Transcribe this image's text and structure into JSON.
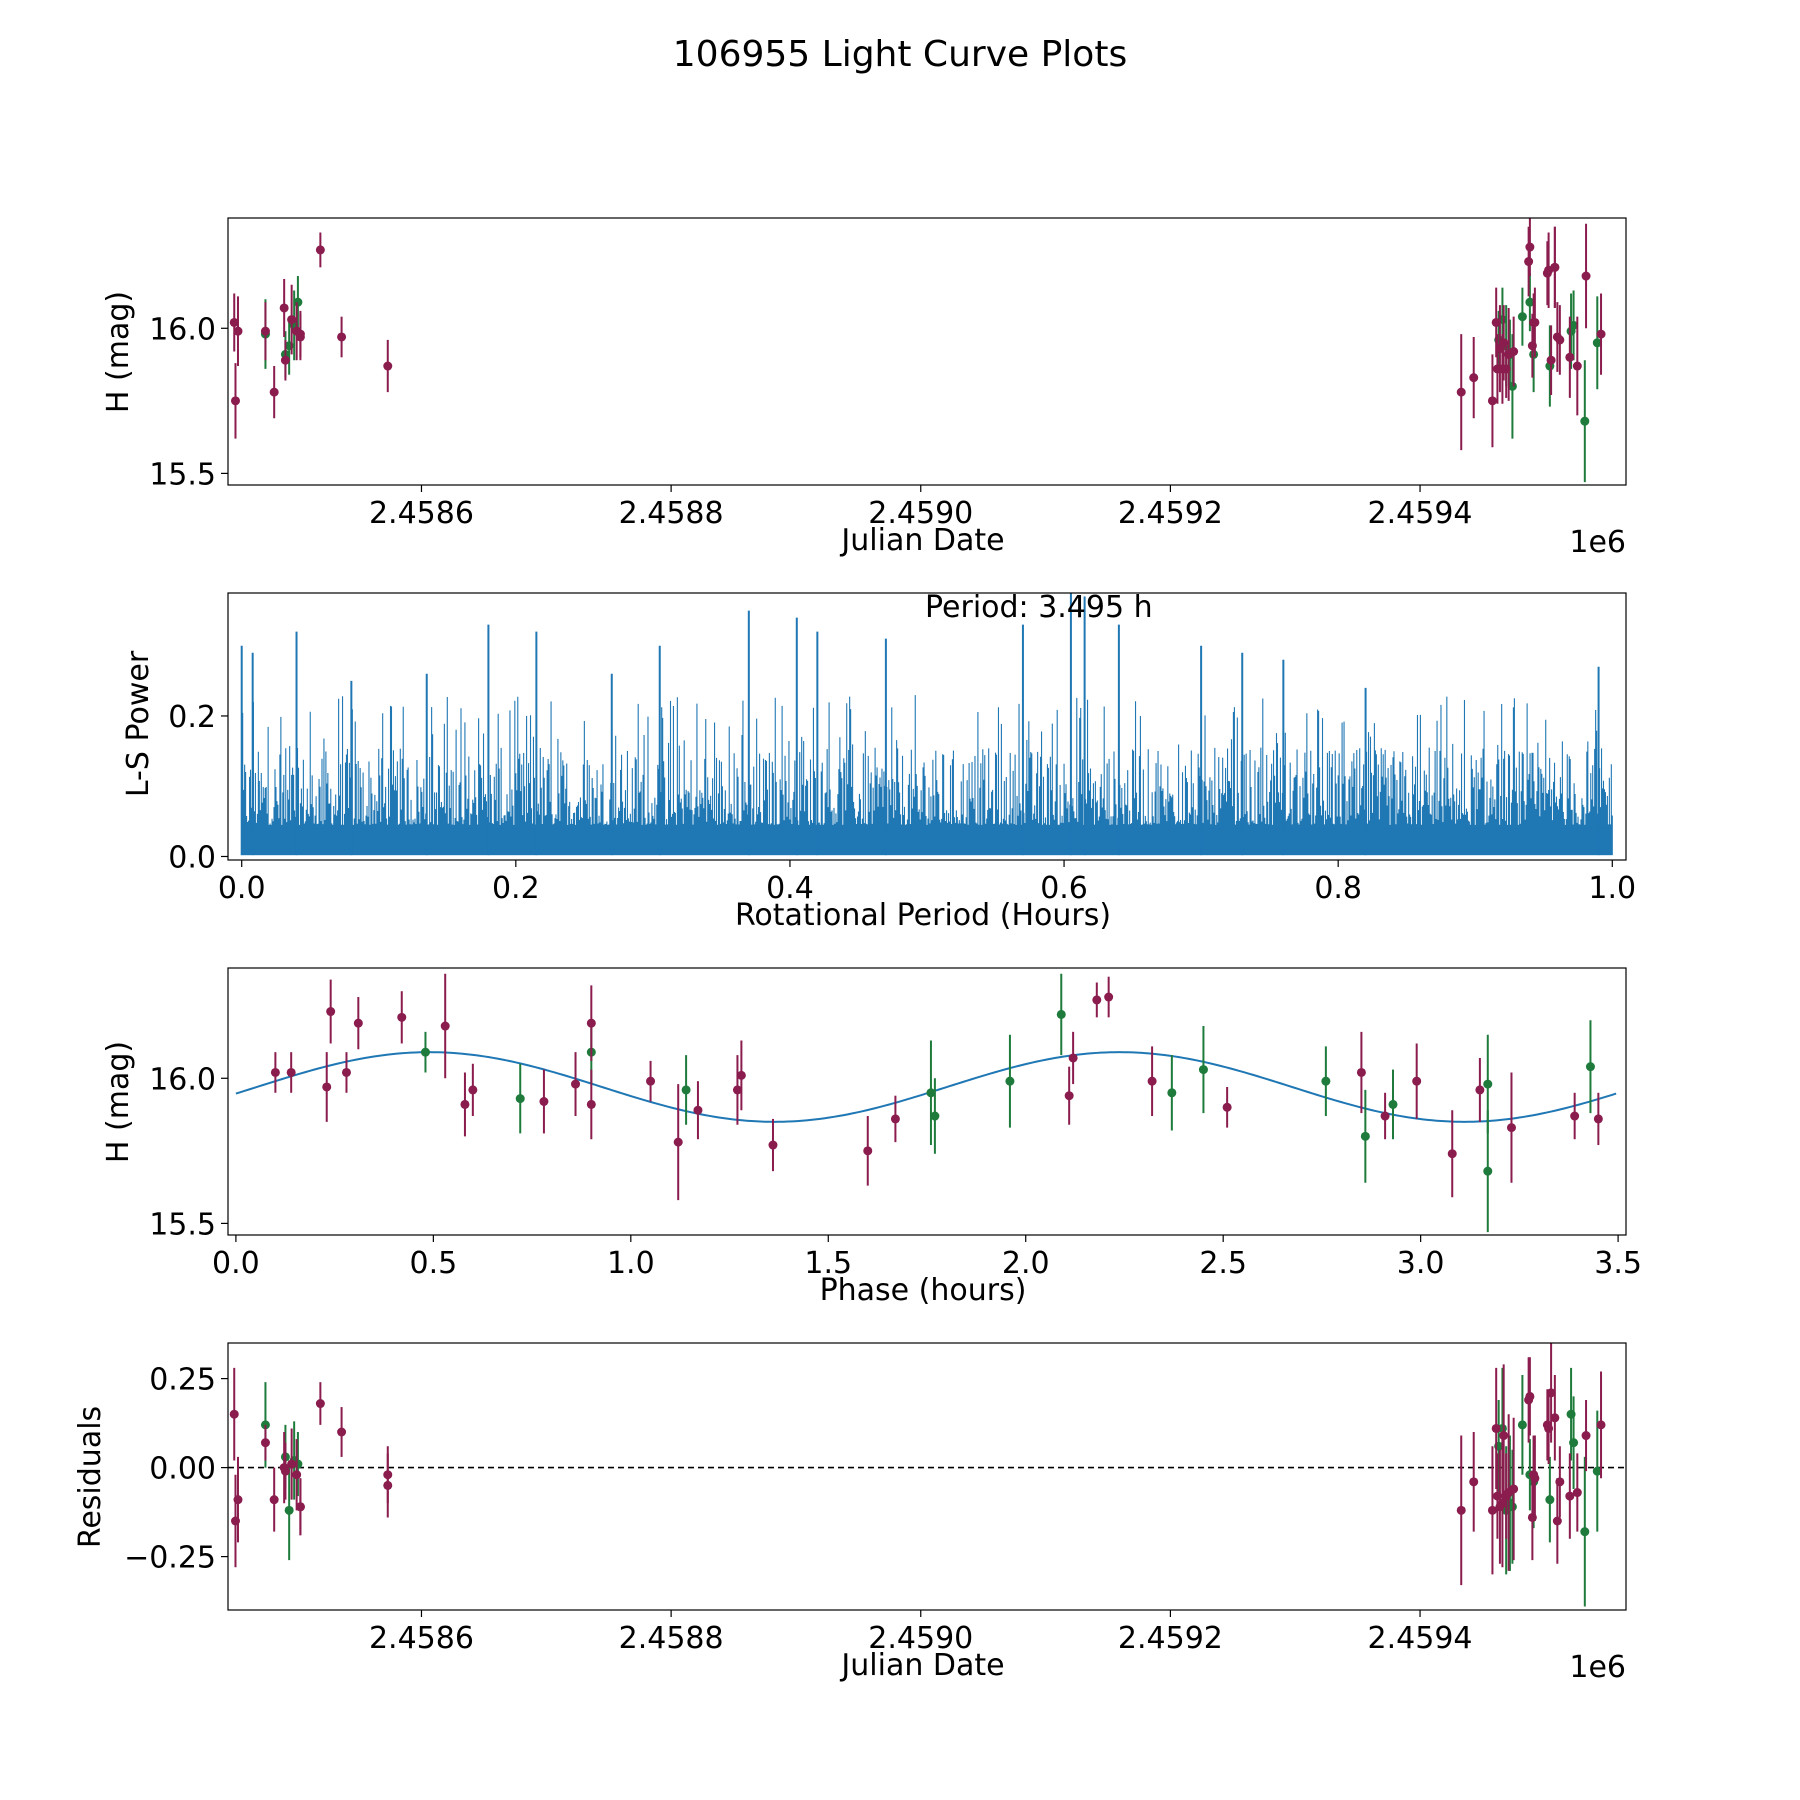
{
  "figure_title": "106955 Light Curve Plots",
  "colors": {
    "ztf_g": "#1e7b3b",
    "ztf_r": "#8a1c4e",
    "model": "#1f77b4",
    "frame": "#000000",
    "background": "#ffffff"
  },
  "chart_data": [
    {
      "id": "light_curve",
      "type": "scatter",
      "title": "",
      "xlabel": "Julian Date",
      "ylabel": "H (mag)",
      "x_offset_label": "1e6",
      "xlim": [
        2458445,
        2459565
      ],
      "ylim": [
        15.46,
        16.38
      ],
      "xticks": [
        2458600,
        2458800,
        2459000,
        2459200,
        2459400
      ],
      "xtick_labels": [
        "2.4586",
        "2.4588",
        "2.4590",
        "2.4592",
        "2.4594"
      ],
      "yticks": [
        15.5,
        16.0
      ],
      "ytick_labels": [
        "15.5",
        "16.0"
      ],
      "series": [
        {
          "name": "green",
          "color": "#1e7b3b",
          "x": [
            2458475,
            2458491,
            2458494,
            2458498,
            2458501,
            2459463,
            2459466,
            2459469,
            2459472,
            2459474,
            2459482,
            2459488,
            2459491,
            2459504,
            2459521,
            2459523,
            2459532,
            2459542
          ],
          "y": [
            15.98,
            15.91,
            15.94,
            16.01,
            16.09,
            15.96,
            16.03,
            15.94,
            15.91,
            15.8,
            16.04,
            16.09,
            15.91,
            15.87,
            15.99,
            16.01,
            15.68,
            15.95
          ],
          "err": [
            0.12,
            0.08,
            0.1,
            0.12,
            0.09,
            0.1,
            0.11,
            0.14,
            0.12,
            0.18,
            0.1,
            0.1,
            0.13,
            0.14,
            0.13,
            0.12,
            0.21,
            0.16
          ]
        },
        {
          "name": "red",
          "color": "#8a1c4e",
          "x": [
            2458450,
            2458451,
            2458453,
            2458475,
            2458482,
            2458490,
            2458491,
            2458496,
            2458500,
            2458503,
            2458503,
            2458519,
            2458536,
            2458573,
            2459433,
            2459443,
            2459458,
            2459461,
            2459462,
            2459464,
            2459466,
            2459467,
            2459469,
            2459471,
            2459475,
            2459487,
            2459488,
            2459490,
            2459491,
            2459492,
            2459502,
            2459503,
            2459505,
            2459508,
            2459508,
            2459510,
            2459512,
            2459520,
            2459526,
            2459533,
            2459545
          ],
          "y": [
            16.02,
            15.75,
            15.99,
            15.99,
            15.78,
            16.07,
            15.89,
            16.03,
            15.99,
            15.97,
            15.98,
            16.27,
            15.97,
            15.87,
            15.78,
            15.83,
            15.75,
            16.02,
            15.86,
            15.93,
            15.86,
            15.95,
            15.86,
            15.91,
            15.92,
            16.23,
            16.28,
            15.94,
            16.02,
            16.02,
            16.19,
            16.2,
            15.89,
            16.21,
            16.21,
            15.97,
            15.96,
            15.9,
            15.87,
            16.18,
            15.98
          ],
          "err": [
            0.1,
            0.13,
            0.12,
            0.1,
            0.09,
            0.1,
            0.07,
            0.12,
            0.1,
            0.08,
            0.08,
            0.06,
            0.07,
            0.09,
            0.2,
            0.14,
            0.16,
            0.12,
            0.12,
            0.15,
            0.12,
            0.13,
            0.1,
            0.16,
            0.12,
            0.12,
            0.1,
            0.11,
            0.1,
            0.12,
            0.11,
            0.13,
            0.12,
            0.14,
            0.14,
            0.12,
            0.12,
            0.14,
            0.17,
            0.18,
            0.14
          ]
        }
      ]
    },
    {
      "id": "periodogram",
      "type": "line",
      "title": "",
      "annotation": "Period: 3.495 h",
      "xlabel": "Rotational Period (Hours)",
      "ylabel": "L-S Power",
      "xlim": [
        -0.01,
        1.01
      ],
      "ylim": [
        -0.005,
        0.375
      ],
      "xticks": [
        0.0,
        0.2,
        0.4,
        0.6,
        0.8,
        1.0
      ],
      "xtick_labels": [
        "0.0",
        "0.2",
        "0.4",
        "0.6",
        "0.8",
        "1.0"
      ],
      "yticks": [
        0.0,
        0.2
      ],
      "ytick_labels": [
        "0.0",
        "0.2"
      ],
      "series": [
        {
          "name": "L-S power",
          "color": "#1f77b4",
          "style": "dense-noise",
          "x_range": [
            0.0,
            1.0
          ],
          "typical_power": [
            0.0,
            0.15
          ],
          "peaks": [
            {
              "x": 0.0,
              "y": 0.3
            },
            {
              "x": 0.008,
              "y": 0.29
            },
            {
              "x": 0.04,
              "y": 0.32
            },
            {
              "x": 0.08,
              "y": 0.25
            },
            {
              "x": 0.135,
              "y": 0.26
            },
            {
              "x": 0.18,
              "y": 0.33
            },
            {
              "x": 0.215,
              "y": 0.32
            },
            {
              "x": 0.27,
              "y": 0.26
            },
            {
              "x": 0.305,
              "y": 0.3
            },
            {
              "x": 0.37,
              "y": 0.35
            },
            {
              "x": 0.405,
              "y": 0.34
            },
            {
              "x": 0.42,
              "y": 0.32
            },
            {
              "x": 0.47,
              "y": 0.31
            },
            {
              "x": 0.57,
              "y": 0.33
            },
            {
              "x": 0.605,
              "y": 0.38
            },
            {
              "x": 0.615,
              "y": 0.37
            },
            {
              "x": 0.64,
              "y": 0.33
            },
            {
              "x": 0.7,
              "y": 0.3
            },
            {
              "x": 0.73,
              "y": 0.29
            },
            {
              "x": 0.76,
              "y": 0.28
            },
            {
              "x": 0.82,
              "y": 0.24
            },
            {
              "x": 0.99,
              "y": 0.27
            }
          ]
        }
      ]
    },
    {
      "id": "phase_fold",
      "type": "scatter",
      "title": "",
      "xlabel": "Phase (hours)",
      "ylabel": "H (mag)",
      "xlim": [
        -0.02,
        3.52
      ],
      "ylim": [
        15.46,
        16.38
      ],
      "xticks": [
        0.0,
        0.5,
        1.0,
        1.5,
        2.0,
        2.5,
        3.0,
        3.5
      ],
      "xtick_labels": [
        "0.0",
        "0.5",
        "1.0",
        "1.5",
        "2.0",
        "2.5",
        "3.0",
        "3.5"
      ],
      "yticks": [
        15.5,
        16.0
      ],
      "ytick_labels": [
        "15.5",
        "16.0"
      ],
      "model": {
        "type": "sinusoid",
        "mean": 15.97,
        "amplitude": 0.12,
        "period_hours": 1.7475,
        "peak_phase": 0.49,
        "color": "#1f77b4"
      },
      "series": [
        {
          "name": "green",
          "color": "#1e7b3b",
          "x": [
            0.48,
            0.72,
            0.9,
            1.14,
            1.76,
            1.77,
            1.96,
            2.09,
            2.37,
            2.45,
            2.76,
            2.86,
            2.93,
            3.17,
            3.17,
            3.43
          ],
          "y": [
            16.09,
            15.93,
            16.09,
            15.96,
            15.95,
            15.87,
            15.99,
            16.22,
            15.95,
            16.03,
            15.99,
            15.8,
            15.91,
            15.68,
            15.98,
            16.04
          ],
          "err": [
            0.07,
            0.12,
            0.11,
            0.12,
            0.18,
            0.13,
            0.16,
            0.14,
            0.13,
            0.15,
            0.12,
            0.16,
            0.12,
            0.21,
            0.17,
            0.16
          ]
        },
        {
          "name": "red",
          "color": "#8a1c4e",
          "x": [
            0.1,
            0.14,
            0.23,
            0.24,
            0.28,
            0.31,
            0.42,
            0.53,
            0.58,
            0.6,
            0.78,
            0.86,
            0.9,
            0.9,
            1.05,
            1.12,
            1.17,
            1.27,
            1.28,
            1.36,
            1.6,
            1.67,
            2.11,
            2.12,
            2.18,
            2.21,
            2.32,
            2.51,
            2.85,
            2.91,
            2.99,
            3.08,
            3.15,
            3.23,
            3.39,
            3.45
          ],
          "y": [
            16.02,
            16.02,
            15.97,
            16.23,
            16.02,
            16.19,
            16.21,
            16.18,
            15.91,
            15.96,
            15.92,
            15.98,
            16.19,
            15.91,
            15.99,
            15.78,
            15.89,
            15.96,
            16.01,
            15.77,
            15.75,
            15.86,
            15.94,
            16.07,
            16.27,
            16.28,
            15.99,
            15.9,
            16.02,
            15.87,
            15.99,
            15.74,
            15.96,
            15.83,
            15.87,
            15.86
          ],
          "err": [
            0.07,
            0.07,
            0.12,
            0.11,
            0.07,
            0.09,
            0.09,
            0.18,
            0.11,
            0.09,
            0.11,
            0.11,
            0.13,
            0.12,
            0.07,
            0.2,
            0.1,
            0.12,
            0.12,
            0.09,
            0.12,
            0.08,
            0.1,
            0.09,
            0.06,
            0.07,
            0.12,
            0.07,
            0.14,
            0.08,
            0.13,
            0.15,
            0.11,
            0.19,
            0.08,
            0.09
          ]
        }
      ]
    },
    {
      "id": "residuals",
      "type": "scatter",
      "title": "",
      "xlabel": "Julian Date",
      "ylabel": "Residuals",
      "x_offset_label": "1e6",
      "xlim": [
        2458445,
        2459565
      ],
      "ylim": [
        -0.4,
        0.35
      ],
      "xticks": [
        2458600,
        2458800,
        2459000,
        2459200,
        2459400
      ],
      "xtick_labels": [
        "2.4586",
        "2.4588",
        "2.4590",
        "2.4592",
        "2.4594"
      ],
      "yticks": [
        0.25,
        0.0,
        -0.25
      ],
      "ytick_labels": [
        "0.25",
        "0.00",
        "−0.25"
      ],
      "reference_line": {
        "y": 0.0,
        "style": "dashed",
        "color": "#000000"
      },
      "series": [
        {
          "name": "green",
          "color": "#1e7b3b",
          "x": [
            2458475,
            2458491,
            2458494,
            2458498,
            2458501,
            2459463,
            2459466,
            2459469,
            2459472,
            2459474,
            2459482,
            2459488,
            2459491,
            2459504,
            2459521,
            2459523,
            2459532,
            2459542
          ],
          "y": [
            0.12,
            0.03,
            -0.12,
            0.02,
            0.01,
            0.06,
            0.11,
            -0.12,
            -0.1,
            -0.11,
            0.12,
            -0.02,
            -0.04,
            -0.09,
            0.15,
            0.07,
            -0.18,
            -0.01
          ],
          "err": [
            0.12,
            0.09,
            0.14,
            0.11,
            0.09,
            0.13,
            0.17,
            0.18,
            0.19,
            0.16,
            0.14,
            0.1,
            0.13,
            0.12,
            0.13,
            0.13,
            0.21,
            0.17
          ]
        },
        {
          "name": "red",
          "color": "#8a1c4e",
          "x": [
            2458450,
            2458451,
            2458453,
            2458475,
            2458482,
            2458490,
            2458491,
            2458496,
            2458500,
            2458503,
            2458503,
            2458519,
            2458536,
            2458573,
            2458573,
            2459433,
            2459443,
            2459458,
            2459461,
            2459462,
            2459464,
            2459466,
            2459467,
            2459469,
            2459471,
            2459475,
            2459487,
            2459488,
            2459490,
            2459491,
            2459492,
            2459502,
            2459503,
            2459505,
            2459508,
            2459510,
            2459512,
            2459520,
            2459526,
            2459533,
            2459545
          ],
          "y": [
            0.15,
            -0.15,
            -0.09,
            0.07,
            -0.09,
            0.0,
            -0.01,
            0.01,
            -0.02,
            -0.11,
            -0.11,
            0.18,
            0.1,
            -0.02,
            -0.05,
            -0.12,
            -0.04,
            -0.12,
            0.11,
            -0.08,
            -0.11,
            -0.1,
            0.09,
            -0.08,
            -0.07,
            -0.06,
            0.19,
            0.2,
            -0.14,
            -0.02,
            -0.03,
            0.12,
            0.11,
            0.21,
            0.14,
            -0.15,
            -0.04,
            -0.08,
            -0.07,
            0.09,
            0.12
          ],
          "err": [
            0.13,
            0.13,
            0.12,
            0.05,
            0.09,
            0.1,
            0.08,
            0.1,
            0.1,
            0.08,
            0.08,
            0.06,
            0.07,
            0.08,
            0.09,
            0.21,
            0.14,
            0.18,
            0.17,
            0.12,
            0.16,
            0.18,
            0.2,
            0.12,
            0.22,
            0.2,
            0.12,
            0.11,
            0.12,
            0.11,
            0.12,
            0.1,
            0.1,
            0.14,
            0.12,
            0.12,
            0.1,
            0.12,
            0.11,
            0.1,
            0.15
          ]
        }
      ]
    }
  ]
}
